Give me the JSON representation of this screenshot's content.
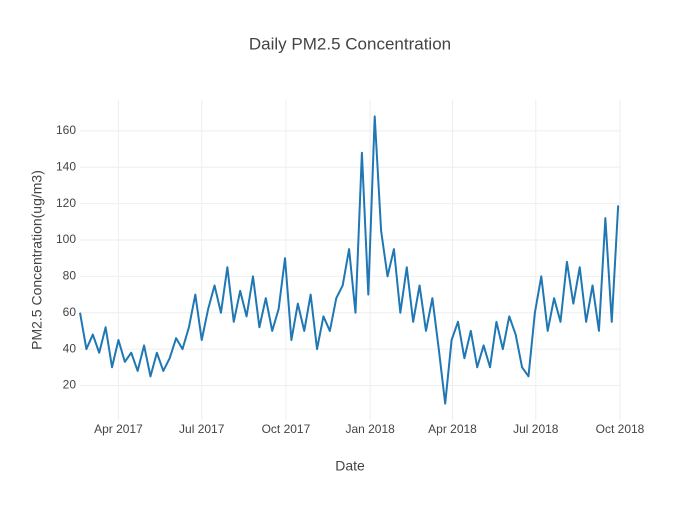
{
  "chart_data": {
    "type": "line",
    "title": "Daily PM2.5 Concentration",
    "x_label": "Date",
    "y_label": "PM2.5 Concentration(ug/m3)",
    "color": "#1f77b4",
    "grid": true,
    "x": [
      "2017-02-18",
      "2017-02-25",
      "2017-03-04",
      "2017-03-11",
      "2017-03-18",
      "2017-03-25",
      "2017-04-01",
      "2017-04-08",
      "2017-04-15",
      "2017-04-22",
      "2017-04-29",
      "2017-05-06",
      "2017-05-13",
      "2017-05-20",
      "2017-05-27",
      "2017-06-03",
      "2017-06-10",
      "2017-06-17",
      "2017-06-24",
      "2017-07-01",
      "2017-07-08",
      "2017-07-15",
      "2017-07-22",
      "2017-07-29",
      "2017-08-05",
      "2017-08-12",
      "2017-08-19",
      "2017-08-26",
      "2017-09-02",
      "2017-09-09",
      "2017-09-16",
      "2017-09-23",
      "2017-09-30",
      "2017-10-07",
      "2017-10-14",
      "2017-10-21",
      "2017-10-28",
      "2017-11-04",
      "2017-11-11",
      "2017-11-18",
      "2017-11-25",
      "2017-12-02",
      "2017-12-09",
      "2017-12-16",
      "2017-12-23",
      "2017-12-30",
      "2018-01-06",
      "2018-01-13",
      "2018-01-20",
      "2018-01-27",
      "2018-02-03",
      "2018-02-10",
      "2018-02-17",
      "2018-02-24",
      "2018-03-03",
      "2018-03-10",
      "2018-03-17",
      "2018-03-24",
      "2018-03-31",
      "2018-04-07",
      "2018-04-14",
      "2018-04-21",
      "2018-04-28",
      "2018-05-05",
      "2018-05-12",
      "2018-05-19",
      "2018-05-26",
      "2018-06-02",
      "2018-06-09",
      "2018-06-16",
      "2018-06-23",
      "2018-06-30",
      "2018-07-07",
      "2018-07-14",
      "2018-07-21",
      "2018-07-28",
      "2018-08-04",
      "2018-08-11",
      "2018-08-18",
      "2018-08-25",
      "2018-09-01",
      "2018-09-08",
      "2018-09-15",
      "2018-09-22",
      "2018-09-29"
    ],
    "values": [
      60,
      40,
      48,
      38,
      52,
      30,
      45,
      33,
      38,
      28,
      42,
      25,
      38,
      28,
      35,
      46,
      40,
      52,
      70,
      45,
      62,
      75,
      60,
      85,
      55,
      72,
      58,
      80,
      52,
      68,
      50,
      62,
      90,
      45,
      65,
      50,
      70,
      40,
      58,
      50,
      68,
      75,
      95,
      60,
      148,
      70,
      168,
      105,
      80,
      95,
      60,
      85,
      55,
      75,
      50,
      68,
      40,
      10,
      45,
      55,
      35,
      50,
      30,
      42,
      30,
      55,
      40,
      58,
      48,
      30,
      25,
      60,
      80,
      50,
      68,
      55,
      88,
      65,
      85,
      55,
      75,
      50,
      112,
      55,
      119
    ],
    "xlim": [
      "2017-02-18",
      "2018-10-01"
    ],
    "xticks": [
      {
        "value": "2017-04-01",
        "label": "Apr 2017"
      },
      {
        "value": "2017-07-01",
        "label": "Jul 2017"
      },
      {
        "value": "2017-10-01",
        "label": "Oct 2017"
      },
      {
        "value": "2018-01-01",
        "label": "Jan 2018"
      },
      {
        "value": "2018-04-01",
        "label": "Apr 2018"
      },
      {
        "value": "2018-07-01",
        "label": "Jul 2018"
      },
      {
        "value": "2018-10-01",
        "label": "Oct 2018"
      }
    ],
    "ylim": [
      1,
      177
    ],
    "yticks": [
      20,
      40,
      60,
      80,
      100,
      120,
      140,
      160
    ]
  }
}
